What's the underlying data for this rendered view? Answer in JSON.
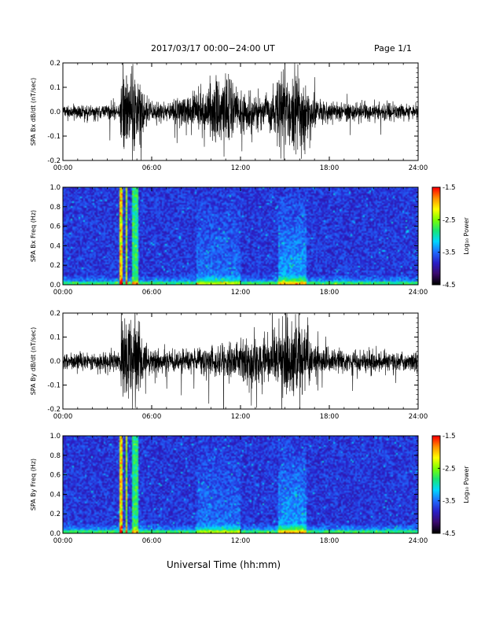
{
  "header": {
    "title": "2017/03/17  00:00−24:00 UT",
    "page": "Page 1/1"
  },
  "footer": {
    "xlabel": "Universal Time (hh:mm)"
  },
  "colorbar_labels": {
    "ticks": [
      "-1.5",
      "-2.5",
      "-3.5",
      "-4.5"
    ],
    "title": "Log₁₀ Power"
  },
  "chart_data": [
    {
      "type": "line",
      "panel": "bx-timeseries",
      "ylabel": "SPA Bx dB/dt (nT/sec)",
      "xlim": [
        0,
        24
      ],
      "ylim": [
        -0.2,
        0.2
      ],
      "xticks": [
        "00:00",
        "06:00",
        "12:00",
        "18:00",
        "24:00"
      ],
      "yticks": [
        "0.2",
        "0.1",
        "0.0",
        "-0.1",
        "-0.2"
      ],
      "ytick_values": [
        0.2,
        0.1,
        0.0,
        -0.1,
        -0.2
      ],
      "envelope": {
        "x_hours": [
          0,
          2,
          3.8,
          4.0,
          4.3,
          4.6,
          5.0,
          5.5,
          6,
          7,
          8,
          9,
          9.5,
          10,
          10.5,
          11,
          11.5,
          12,
          13,
          14,
          14.8,
          15.2,
          15.6,
          16.2,
          16.8,
          17.5,
          18,
          20,
          22,
          24
        ],
        "amplitude": [
          0.03,
          0.03,
          0.04,
          0.2,
          0.2,
          0.18,
          0.2,
          0.08,
          0.05,
          0.05,
          0.06,
          0.08,
          0.12,
          0.15,
          0.16,
          0.2,
          0.12,
          0.1,
          0.08,
          0.08,
          0.18,
          0.2,
          0.2,
          0.18,
          0.07,
          0.05,
          0.05,
          0.04,
          0.04,
          0.03
        ]
      }
    },
    {
      "type": "heatmap",
      "panel": "bx-spectrogram",
      "ylabel": "SPA Bx Freq (Hz)",
      "xlim": [
        0,
        24
      ],
      "ylim": [
        0,
        1.0
      ],
      "xticks": [
        "00:00",
        "06:00",
        "12:00",
        "18:00",
        "24:00"
      ],
      "yticks": [
        "1.0",
        "0.8",
        "0.6",
        "0.4",
        "0.2",
        "0.0"
      ],
      "ytick_values": [
        1.0,
        0.8,
        0.6,
        0.4,
        0.2,
        0.0
      ],
      "colorbar": {
        "label": "Log10 Power",
        "range": [
          -4.5,
          -1.5
        ],
        "ticks": [
          -1.5,
          -2.5,
          -3.5,
          -4.5
        ]
      }
    },
    {
      "type": "line",
      "panel": "by-timeseries",
      "ylabel": "SPA By dB/dt (nT/sec)",
      "xlim": [
        0,
        24
      ],
      "ylim": [
        -0.2,
        0.2
      ],
      "xticks": [
        "00:00",
        "06:00",
        "12:00",
        "18:00",
        "24:00"
      ],
      "yticks": [
        "0.2",
        "0.1",
        "0.0",
        "-0.1",
        "-0.2"
      ],
      "ytick_values": [
        0.2,
        0.1,
        0.0,
        -0.1,
        -0.2
      ],
      "envelope": {
        "x_hours": [
          0,
          2,
          3.8,
          4.0,
          4.3,
          4.6,
          5.0,
          5.5,
          6,
          7,
          8,
          9,
          10,
          11,
          12,
          13,
          14,
          14.8,
          15.2,
          15.6,
          16.2,
          16.8,
          17.5,
          18,
          20,
          22,
          24
        ],
        "amplitude": [
          0.04,
          0.04,
          0.05,
          0.2,
          0.2,
          0.19,
          0.2,
          0.09,
          0.06,
          0.05,
          0.05,
          0.06,
          0.07,
          0.08,
          0.09,
          0.1,
          0.09,
          0.15,
          0.2,
          0.2,
          0.15,
          0.08,
          0.06,
          0.05,
          0.05,
          0.04,
          0.04
        ]
      }
    },
    {
      "type": "heatmap",
      "panel": "by-spectrogram",
      "ylabel": "SPA By Freq (Hz)",
      "xlim": [
        0,
        24
      ],
      "ylim": [
        0,
        1.0
      ],
      "xticks": [
        "00:00",
        "06:00",
        "12:00",
        "18:00",
        "24:00"
      ],
      "yticks": [
        "1.0",
        "0.8",
        "0.6",
        "0.4",
        "0.2",
        "0.0"
      ],
      "ytick_values": [
        1.0,
        0.8,
        0.6,
        0.4,
        0.2,
        0.0
      ],
      "colorbar": {
        "label": "Log10 Power",
        "range": [
          -4.5,
          -1.5
        ],
        "ticks": [
          -1.5,
          -2.5,
          -3.5,
          -4.5
        ]
      }
    }
  ],
  "colors": {
    "trace": "#000000",
    "axis": "#000000",
    "colormap": [
      "#000000",
      "#3a0a6e",
      "#2a1fc8",
      "#1f6cff",
      "#00d8ff",
      "#18e676",
      "#7dff00",
      "#ffff00",
      "#ff9400",
      "#ff0000"
    ]
  }
}
